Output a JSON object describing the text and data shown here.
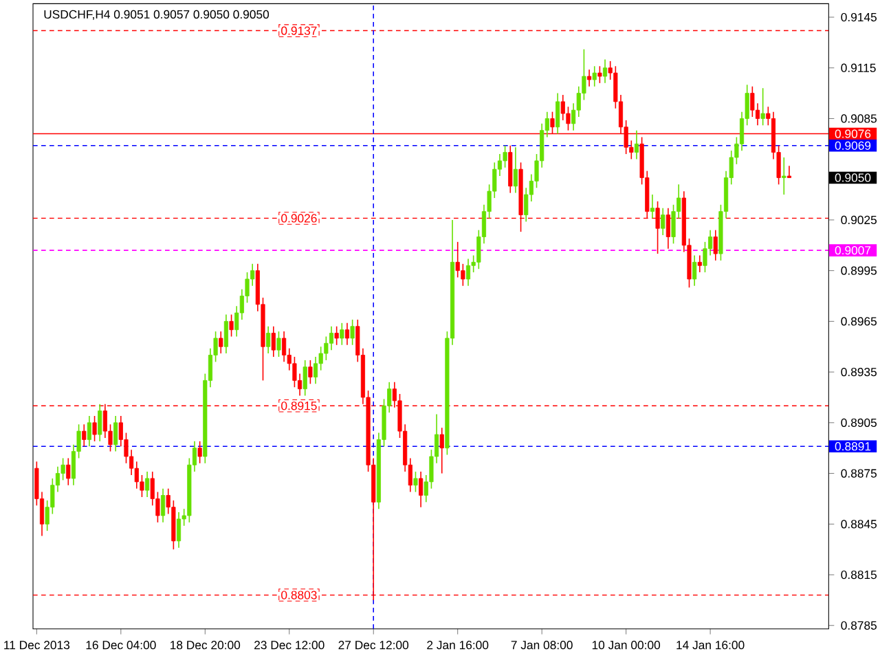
{
  "chart_data": {
    "type": "candlestick",
    "title": "USDCHF,H4 0.9051 0.9057 0.9050 0.9050",
    "categories": [
      "11 Dec 2013",
      null,
      null,
      null,
      null,
      null,
      null,
      null,
      null,
      null,
      null,
      null,
      null,
      null,
      null,
      null,
      "16 Dec 04:00",
      null,
      null,
      null,
      null,
      null,
      null,
      null,
      null,
      null,
      null,
      null,
      null,
      null,
      null,
      null,
      "18 Dec 20:00",
      null,
      null,
      null,
      null,
      null,
      null,
      null,
      null,
      null,
      null,
      null,
      null,
      null,
      null,
      null,
      "23 Dec 12:00",
      null,
      null,
      null,
      null,
      null,
      null,
      null,
      null,
      null,
      null,
      null,
      null,
      null,
      null,
      null,
      "27 Dec 12:00",
      null,
      null,
      null,
      null,
      null,
      null,
      null,
      null,
      null,
      null,
      null,
      null,
      null,
      null,
      null,
      "2 Jan 16:00",
      null,
      null,
      null,
      null,
      null,
      null,
      null,
      null,
      null,
      null,
      null,
      null,
      null,
      null,
      null,
      "7 Jan 08:00",
      null,
      null,
      null,
      null,
      null,
      null,
      null,
      null,
      null,
      null,
      null,
      null,
      null,
      null,
      null,
      "10 Jan 00:00",
      null,
      null,
      null,
      null,
      null,
      null,
      null,
      null,
      null,
      null,
      null,
      null,
      null,
      null,
      null,
      "14 Jan 16:00",
      null,
      null,
      null,
      null,
      null,
      null,
      null,
      null,
      null,
      null,
      null,
      null,
      null,
      null,
      null
    ],
    "ohlc": [
      [
        0.8878,
        0.8882,
        0.8856,
        0.886
      ],
      [
        0.886,
        0.8864,
        0.8838,
        0.8845
      ],
      [
        0.8845,
        0.8859,
        0.8841,
        0.8855
      ],
      [
        0.8855,
        0.8872,
        0.8851,
        0.8868
      ],
      [
        0.8868,
        0.8879,
        0.8864,
        0.8875
      ],
      [
        0.8875,
        0.8884,
        0.8871,
        0.888
      ],
      [
        0.888,
        0.8884,
        0.8868,
        0.8872
      ],
      [
        0.8872,
        0.8892,
        0.8868,
        0.8888
      ],
      [
        0.8888,
        0.8904,
        0.8884,
        0.89
      ],
      [
        0.89,
        0.8904,
        0.8891,
        0.8895
      ],
      [
        0.8895,
        0.8909,
        0.8891,
        0.8905
      ],
      [
        0.8905,
        0.8909,
        0.8894,
        0.8898
      ],
      [
        0.8898,
        0.8916,
        0.8894,
        0.8912
      ],
      [
        0.8912,
        0.8916,
        0.8896,
        0.89
      ],
      [
        0.89,
        0.8904,
        0.8888,
        0.8892
      ],
      [
        0.8892,
        0.8909,
        0.8888,
        0.8905
      ],
      [
        0.8905,
        0.8909,
        0.8891,
        0.8895
      ],
      [
        0.8895,
        0.8899,
        0.8881,
        0.8885
      ],
      [
        0.8885,
        0.8889,
        0.8874,
        0.8878
      ],
      [
        0.8878,
        0.8882,
        0.8866,
        0.887
      ],
      [
        0.887,
        0.8874,
        0.8861,
        0.8865
      ],
      [
        0.8865,
        0.8876,
        0.8861,
        0.8872
      ],
      [
        0.8872,
        0.8876,
        0.8856,
        0.886
      ],
      [
        0.886,
        0.8864,
        0.8846,
        0.885
      ],
      [
        0.885,
        0.8866,
        0.8846,
        0.8862
      ],
      [
        0.8862,
        0.8866,
        0.8851,
        0.8855
      ],
      [
        0.8855,
        0.8859,
        0.883,
        0.8835
      ],
      [
        0.8835,
        0.8852,
        0.8831,
        0.8848
      ],
      [
        0.8848,
        0.8854,
        0.8844,
        0.885
      ],
      [
        0.885,
        0.8884,
        0.8846,
        0.888
      ],
      [
        0.888,
        0.8894,
        0.8876,
        0.889
      ],
      [
        0.889,
        0.8894,
        0.8881,
        0.8885
      ],
      [
        0.8885,
        0.8934,
        0.8881,
        0.893
      ],
      [
        0.893,
        0.8949,
        0.8926,
        0.8945
      ],
      [
        0.8945,
        0.8959,
        0.8941,
        0.8955
      ],
      [
        0.8955,
        0.8959,
        0.8946,
        0.895
      ],
      [
        0.895,
        0.8969,
        0.8946,
        0.8965
      ],
      [
        0.8965,
        0.8969,
        0.8956,
        0.896
      ],
      [
        0.896,
        0.8974,
        0.8956,
        0.897
      ],
      [
        0.897,
        0.8984,
        0.8966,
        0.898
      ],
      [
        0.898,
        0.8994,
        0.8976,
        0.899
      ],
      [
        0.899,
        0.8999,
        0.8986,
        0.8995
      ],
      [
        0.8995,
        0.8999,
        0.8971,
        0.8975
      ],
      [
        0.8975,
        0.8979,
        0.893,
        0.895
      ],
      [
        0.895,
        0.8962,
        0.8946,
        0.8958
      ],
      [
        0.8958,
        0.8962,
        0.8944,
        0.8948
      ],
      [
        0.8948,
        0.8959,
        0.8944,
        0.8955
      ],
      [
        0.8955,
        0.8959,
        0.8941,
        0.8945
      ],
      [
        0.8945,
        0.8949,
        0.8936,
        0.894
      ],
      [
        0.894,
        0.8944,
        0.8926,
        0.893
      ],
      [
        0.893,
        0.8934,
        0.8921,
        0.8925
      ],
      [
        0.8925,
        0.8942,
        0.8921,
        0.8938
      ],
      [
        0.8938,
        0.8942,
        0.8928,
        0.8932
      ],
      [
        0.8932,
        0.8944,
        0.8928,
        0.894
      ],
      [
        0.894,
        0.895,
        0.8936,
        0.8946
      ],
      [
        0.8946,
        0.8956,
        0.8942,
        0.8952
      ],
      [
        0.8952,
        0.8962,
        0.8948,
        0.8958
      ],
      [
        0.8958,
        0.8962,
        0.8951,
        0.8955
      ],
      [
        0.8955,
        0.8964,
        0.8951,
        0.896
      ],
      [
        0.896,
        0.8964,
        0.8951,
        0.8955
      ],
      [
        0.8955,
        0.8966,
        0.8951,
        0.8962
      ],
      [
        0.8962,
        0.8966,
        0.8941,
        0.8945
      ],
      [
        0.8945,
        0.8949,
        0.8916,
        0.892
      ],
      [
        0.892,
        0.8924,
        0.8876,
        0.888
      ],
      [
        0.888,
        0.8884,
        0.88,
        0.8858
      ],
      [
        0.8858,
        0.8899,
        0.8854,
        0.8895
      ],
      [
        0.8895,
        0.8919,
        0.8891,
        0.8915
      ],
      [
        0.8915,
        0.8929,
        0.8911,
        0.8925
      ],
      [
        0.8925,
        0.8929,
        0.8914,
        0.8918
      ],
      [
        0.8918,
        0.8922,
        0.8896,
        0.89
      ],
      [
        0.89,
        0.8904,
        0.8876,
        0.888
      ],
      [
        0.888,
        0.8884,
        0.8864,
        0.8868
      ],
      [
        0.8868,
        0.8876,
        0.8864,
        0.8872
      ],
      [
        0.8872,
        0.8876,
        0.8855,
        0.8862
      ],
      [
        0.8862,
        0.8874,
        0.8858,
        0.887
      ],
      [
        0.887,
        0.8889,
        0.8866,
        0.8885
      ],
      [
        0.8885,
        0.891,
        0.8881,
        0.8898
      ],
      [
        0.8898,
        0.8902,
        0.8875,
        0.889
      ],
      [
        0.889,
        0.8959,
        0.8886,
        0.8955
      ],
      [
        0.8955,
        0.9025,
        0.8951,
        0.9
      ],
      [
        0.9,
        0.9012,
        0.8991,
        0.8995
      ],
      [
        0.8995,
        0.8999,
        0.8986,
        0.899
      ],
      [
        0.899,
        0.9002,
        0.8986,
        0.8998
      ],
      [
        0.8998,
        0.9004,
        0.8994,
        0.9
      ],
      [
        0.9,
        0.9019,
        0.8996,
        0.9015
      ],
      [
        0.9015,
        0.9034,
        0.9011,
        0.903
      ],
      [
        0.903,
        0.9046,
        0.9026,
        0.9042
      ],
      [
        0.9042,
        0.9059,
        0.9038,
        0.9055
      ],
      [
        0.9055,
        0.9064,
        0.9051,
        0.906
      ],
      [
        0.906,
        0.9069,
        0.9056,
        0.9065
      ],
      [
        0.9065,
        0.9069,
        0.9041,
        0.9045
      ],
      [
        0.9045,
        0.9068,
        0.9041,
        0.9055
      ],
      [
        0.9055,
        0.9059,
        0.9018,
        0.9028
      ],
      [
        0.9028,
        0.9044,
        0.9024,
        0.904
      ],
      [
        0.904,
        0.9052,
        0.9036,
        0.9048
      ],
      [
        0.9048,
        0.9064,
        0.9044,
        0.906
      ],
      [
        0.906,
        0.9082,
        0.9056,
        0.9078
      ],
      [
        0.9078,
        0.9089,
        0.9074,
        0.9085
      ],
      [
        0.9085,
        0.9089,
        0.9076,
        0.908
      ],
      [
        0.908,
        0.91,
        0.9076,
        0.9095
      ],
      [
        0.9095,
        0.9099,
        0.9084,
        0.9088
      ],
      [
        0.9088,
        0.9092,
        0.9078,
        0.9082
      ],
      [
        0.9082,
        0.9094,
        0.9078,
        0.909
      ],
      [
        0.909,
        0.9104,
        0.9086,
        0.91
      ],
      [
        0.91,
        0.9126,
        0.9096,
        0.911
      ],
      [
        0.911,
        0.9114,
        0.9104,
        0.9108
      ],
      [
        0.9108,
        0.9116,
        0.9104,
        0.9112
      ],
      [
        0.9112,
        0.9116,
        0.9106,
        0.911
      ],
      [
        0.911,
        0.912,
        0.9106,
        0.9115
      ],
      [
        0.9115,
        0.9119,
        0.9108,
        0.9112
      ],
      [
        0.9112,
        0.9116,
        0.9091,
        0.9095
      ],
      [
        0.9095,
        0.9099,
        0.9076,
        0.908
      ],
      [
        0.908,
        0.9084,
        0.9064,
        0.9068
      ],
      [
        0.9068,
        0.9072,
        0.9061,
        0.9065
      ],
      [
        0.9065,
        0.9078,
        0.9061,
        0.907
      ],
      [
        0.907,
        0.9074,
        0.9046,
        0.905
      ],
      [
        0.905,
        0.9054,
        0.9026,
        0.903
      ],
      [
        0.903,
        0.904,
        0.9026,
        0.9032
      ],
      [
        0.9032,
        0.9036,
        0.9005,
        0.902
      ],
      [
        0.902,
        0.9032,
        0.9016,
        0.9028
      ],
      [
        0.9028,
        0.9032,
        0.9008,
        0.9015
      ],
      [
        0.9015,
        0.9034,
        0.9011,
        0.903
      ],
      [
        0.903,
        0.9046,
        0.9026,
        0.9038
      ],
      [
        0.9038,
        0.9042,
        0.9006,
        0.901
      ],
      [
        0.901,
        0.9014,
        0.8985,
        0.899
      ],
      [
        0.899,
        0.9004,
        0.8986,
        0.9
      ],
      [
        0.9,
        0.9004,
        0.8994,
        0.8998
      ],
      [
        0.8998,
        0.9012,
        0.8994,
        0.9008
      ],
      [
        0.9008,
        0.9019,
        0.9004,
        0.9015
      ],
      [
        0.9015,
        0.9019,
        0.9001,
        0.9005
      ],
      [
        0.9005,
        0.9034,
        0.9001,
        0.903
      ],
      [
        0.903,
        0.9054,
        0.9026,
        0.905
      ],
      [
        0.905,
        0.9066,
        0.9046,
        0.9062
      ],
      [
        0.9062,
        0.9074,
        0.9058,
        0.907
      ],
      [
        0.907,
        0.9089,
        0.9066,
        0.9085
      ],
      [
        0.9085,
        0.9105,
        0.9081,
        0.91
      ],
      [
        0.91,
        0.9104,
        0.9086,
        0.909
      ],
      [
        0.909,
        0.9094,
        0.9081,
        0.9085
      ],
      [
        0.9085,
        0.9103,
        0.9081,
        0.9088
      ],
      [
        0.9088,
        0.9092,
        0.9081,
        0.9085
      ],
      [
        0.9085,
        0.9089,
        0.9061,
        0.9065
      ],
      [
        0.9065,
        0.9069,
        0.9046,
        0.905
      ],
      [
        0.905,
        0.9062,
        0.904,
        0.9051
      ],
      [
        0.9051,
        0.9057,
        0.905,
        0.905
      ]
    ],
    "ylim": [
      0.8783,
      0.9153
    ],
    "yticks": [
      0.9145,
      0.9115,
      0.9085,
      0.9025,
      0.8995,
      0.8965,
      0.8935,
      0.8905,
      0.8875,
      0.8845,
      0.8815,
      0.8785
    ],
    "ref_lines": [
      {
        "axis": "y",
        "value": 0.9137,
        "label": "0.9137",
        "color": "#ff0000",
        "line_style": "dashed"
      },
      {
        "axis": "y",
        "value": 0.9026,
        "label": "0.9026",
        "color": "#ff0000",
        "line_style": "dashed"
      },
      {
        "axis": "y",
        "value": 0.8915,
        "label": "0.8915",
        "color": "#ff0000",
        "line_style": "dashed"
      },
      {
        "axis": "y",
        "value": 0.8803,
        "label": "0.8803",
        "color": "#ff0000",
        "line_style": "dashed"
      },
      {
        "axis": "y",
        "value": 0.9076,
        "label": "0.9076",
        "color": "#ff0000",
        "line_style": "solid"
      },
      {
        "axis": "y",
        "value": 0.9069,
        "label": "0.9069",
        "color": "#0000ff",
        "line_style": "dashed"
      },
      {
        "axis": "y",
        "value": 0.9007,
        "label": "0.9007",
        "color": "#ff00ff",
        "line_style": "dashed"
      },
      {
        "axis": "y",
        "value": 0.8891,
        "label": "0.8891",
        "color": "#0000ff",
        "line_style": "dashed"
      },
      {
        "axis": "x",
        "value": "27 Dec 12:00",
        "color": "#0000ff",
        "line_style": "dashed"
      }
    ],
    "annotations": [
      "0.9050"
    ]
  }
}
